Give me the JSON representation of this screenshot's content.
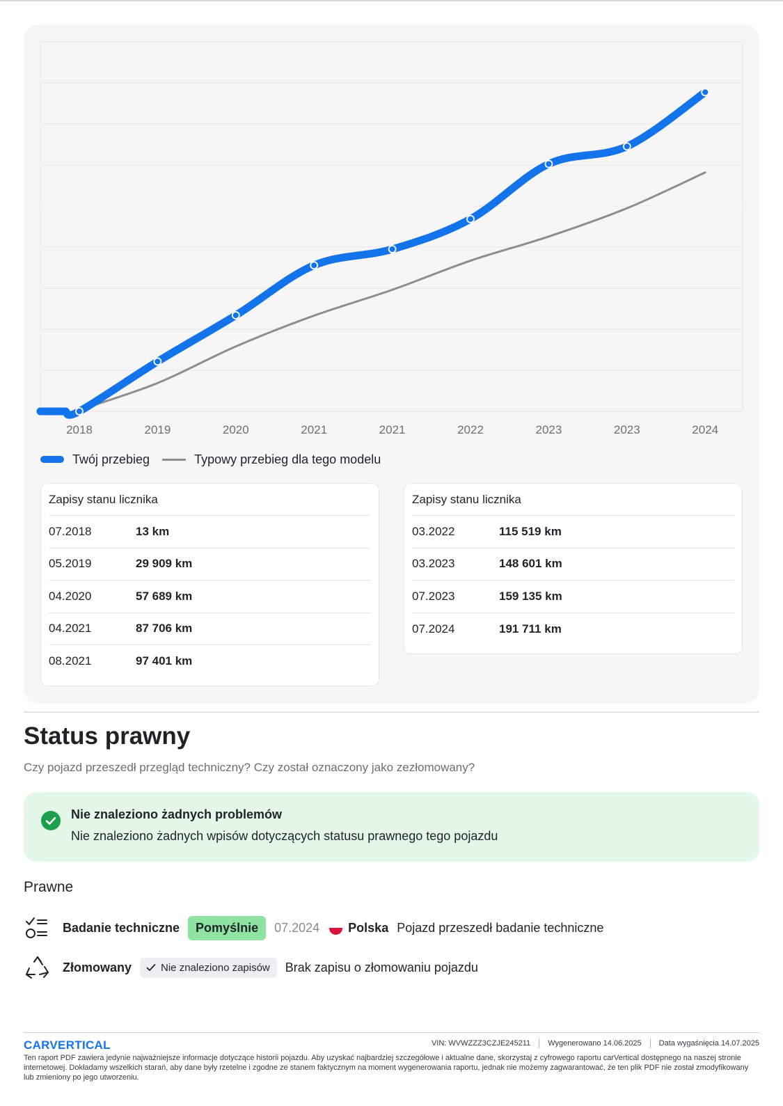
{
  "chart_data": {
    "type": "line",
    "x_ticks": [
      "2018",
      "2019",
      "2020",
      "2021",
      "2021",
      "2022",
      "2023",
      "2023",
      "2024"
    ],
    "series": [
      {
        "name": "Twój przebieg",
        "color": "#1273eb",
        "values": [
          13,
          29909,
          57689,
          87706,
          97401,
          115519,
          148601,
          159135,
          191711
        ]
      },
      {
        "name": "Typowy przebieg dla tego modelu",
        "color": "#8d8d8d",
        "values": [
          900,
          17000,
          39000,
          57500,
          73000,
          90500,
          105000,
          122000,
          143500
        ]
      }
    ],
    "ylim": [
      0,
      222000
    ],
    "grid": true
  },
  "legend": {
    "mine": "Twój przebieg",
    "typical": "Typowy przebieg dla tego modelu"
  },
  "odometer": {
    "title": "Zapisy stanu licznika",
    "left": [
      {
        "date": "07.2018",
        "km": "13 km"
      },
      {
        "date": "05.2019",
        "km": "29 909 km"
      },
      {
        "date": "04.2020",
        "km": "57 689 km"
      },
      {
        "date": "04.2021",
        "km": "87 706 km"
      },
      {
        "date": "08.2021",
        "km": "97 401 km"
      }
    ],
    "right": [
      {
        "date": "03.2022",
        "km": "115 519 km"
      },
      {
        "date": "03.2023",
        "km": "148 601 km"
      },
      {
        "date": "07.2023",
        "km": "159 135 km"
      },
      {
        "date": "07.2024",
        "km": "191 711 km"
      }
    ]
  },
  "legal": {
    "title": "Status prawny",
    "subtitle": "Czy pojazd przeszedł przegląd techniczny? Czy został oznaczony jako zezłomowany?",
    "ok_title": "Nie znaleziono żadnych problemów",
    "ok_text": "Nie znaleziono żadnych wpisów dotyczących statusu prawnego tego pojazdu",
    "section": "Prawne",
    "inspection": {
      "name": "Badanie techniczne",
      "badge": "Pomyślnie",
      "date": "07.2024",
      "country": "Polska",
      "desc": "Pojazd przeszedł badanie techniczne"
    },
    "scrapped": {
      "name": "Złomowany",
      "badge": "Nie znaleziono zapisów",
      "desc": "Brak zapisu o złomowaniu pojazdu"
    }
  },
  "footer": {
    "logo": "CARVERTICAL",
    "vin_label": "VIN:",
    "vin": "WVWZZZ3CZJE245211",
    "generated_label": "Wygenerowano",
    "generated": "14.06.2025",
    "expiry_label": "Data wygaśnięcia",
    "expiry": "14.07.2025",
    "disclaimer": "Ten raport PDF zawiera jedynie najważniejsze informacje dotyczące historii pojazdu. Aby uzyskać najbardziej szczegółowe i aktualne dane, skorzystaj z cyfrowego raportu carVertical dostępnego na naszej stronie internetowej. Dokładamy wszelkich starań, aby dane były rzetelne i zgodne ze stanem faktycznym na moment wygenerowania raportu, jednak nie możemy zagwarantować, że ten plik PDF nie został zmodyfikowany lub zmieniony po jego utworzeniu."
  }
}
